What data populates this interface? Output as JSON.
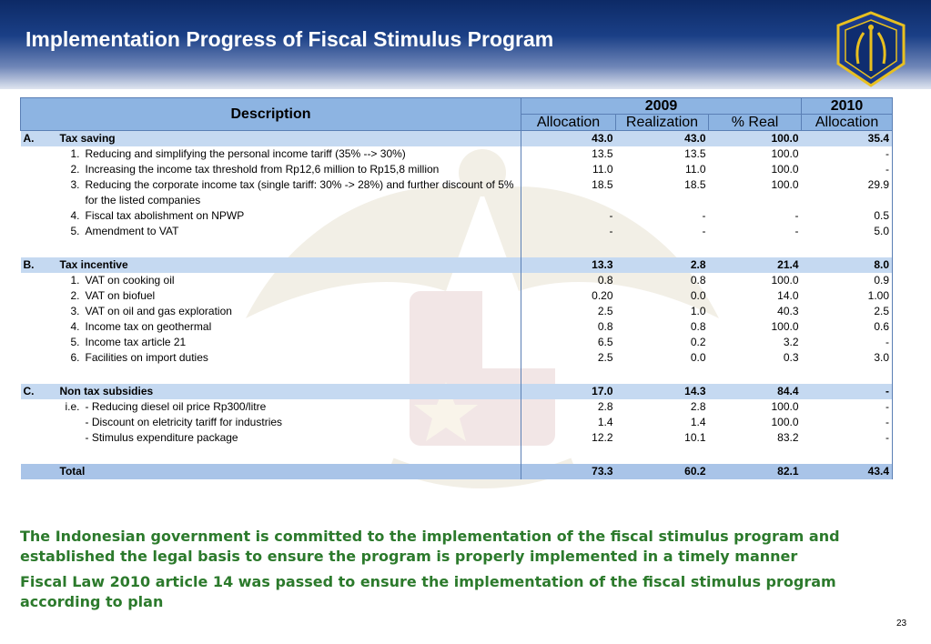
{
  "title": "Implementation Progress of Fiscal Stimulus Program",
  "table": {
    "header": {
      "description": "Description",
      "year_2009": "2009",
      "year_2010": "2010",
      "allocation": "Allocation",
      "realization": "Realization",
      "pct_real": "% Real",
      "allocation_2010": "Allocation"
    },
    "sections": [
      {
        "letter": "A.",
        "name": "Tax saving",
        "alloc": "43.0",
        "real": "43.0",
        "pct": "100.0",
        "alloc2010": "35.4",
        "items": [
          {
            "idx": "1.",
            "text": "Reducing and simplifying the personal income tariff (35% --> 30%)",
            "alloc": "13.5",
            "real": "13.5",
            "pct": "100.0",
            "alloc2010": "-"
          },
          {
            "idx": "2.",
            "text": "Increasing the income tax threshold from Rp12,6 million to Rp15,8 million",
            "alloc": "11.0",
            "real": "11.0",
            "pct": "100.0",
            "alloc2010": "-"
          },
          {
            "idx": "3.",
            "text": "Reducing the corporate income tax (single tariff: 30% -> 28%) and further discount of 5% for the listed companies",
            "alloc": "18.5",
            "real": "18.5",
            "pct": "100.0",
            "alloc2010": "29.9"
          },
          {
            "idx": "4.",
            "text": "Fiscal tax abolishment on NPWP",
            "alloc": "-",
            "real": "-",
            "pct": "-",
            "alloc2010": "0.5"
          },
          {
            "idx": "5.",
            "text": "Amendment to VAT",
            "alloc": "-",
            "real": "-",
            "pct": "-",
            "alloc2010": "5.0"
          }
        ]
      },
      {
        "letter": "B.",
        "name": "Tax incentive",
        "alloc": "13.3",
        "real": "2.8",
        "pct": "21.4",
        "alloc2010": "8.0",
        "items": [
          {
            "idx": "1.",
            "text": "VAT on cooking oil",
            "alloc": "0.8",
            "real": "0.8",
            "pct": "100.0",
            "alloc2010": "0.9"
          },
          {
            "idx": "2.",
            "text": "VAT on biofuel",
            "alloc": "0.20",
            "real": "0.0",
            "pct": "14.0",
            "alloc2010": "1.00"
          },
          {
            "idx": "3.",
            "text": "VAT on oil and gas exploration",
            "alloc": "2.5",
            "real": "1.0",
            "pct": "40.3",
            "alloc2010": "2.5"
          },
          {
            "idx": "4.",
            "text": "Income tax on geothermal",
            "alloc": "0.8",
            "real": "0.8",
            "pct": "100.0",
            "alloc2010": "0.6"
          },
          {
            "idx": "5.",
            "text": "Income tax article 21",
            "alloc": "6.5",
            "real": "0.2",
            "pct": "3.2",
            "alloc2010": "-"
          },
          {
            "idx": "6.",
            "text": "Facilities on import duties",
            "alloc": "2.5",
            "real": "0.0",
            "pct": "0.3",
            "alloc2010": "3.0"
          }
        ]
      },
      {
        "letter": "C.",
        "name": "Non tax subsidies",
        "alloc": "17.0",
        "real": "14.3",
        "pct": "84.4",
        "alloc2010": "-",
        "items": [
          {
            "idx": "i.e.",
            "text": "- Reducing diesel oil price Rp300/litre",
            "alloc": "2.8",
            "real": "2.8",
            "pct": "100.0",
            "alloc2010": "-"
          },
          {
            "idx": "",
            "text": "- Discount on eletricity tariff for industries",
            "alloc": "1.4",
            "real": "1.4",
            "pct": "100.0",
            "alloc2010": "-"
          },
          {
            "idx": "",
            "text": "- Stimulus expenditure package",
            "alloc": "12.2",
            "real": "10.1",
            "pct": "83.2",
            "alloc2010": "-"
          }
        ]
      }
    ],
    "total": {
      "label": "Total",
      "alloc": "73.3",
      "real": "60.2",
      "pct": "82.1",
      "alloc2010": "43.4"
    }
  },
  "footer": {
    "line1": "The Indonesian government is committed to the implementation of the fiscal stimulus program and established the legal basis to ensure the program is properly implemented in a timely manner",
    "line2": "Fiscal Law 2010 article 14 was passed to ensure the implementation of the fiscal stimulus program according to plan"
  },
  "page_number": "23",
  "colors": {
    "header_dark": "#0d2a66",
    "table_header": "#8db4e2",
    "section_row": "#c5d9f1",
    "footer_text": "#2c7a2c"
  },
  "icons": {
    "logo": "ministry-of-finance-emblem-icon",
    "watermark": "garuda-emblem-watermark"
  }
}
